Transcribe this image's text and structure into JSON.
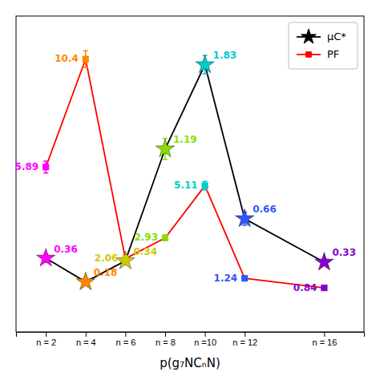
{
  "chart_data": {
    "type": "line",
    "x": [
      2,
      4,
      6,
      8,
      10,
      12,
      16
    ],
    "xlabel": "p(g₇NCₙN)",
    "xlim": [
      0.5,
      18.0
    ],
    "xticks": [
      {
        "value": 2,
        "label": "n = 2"
      },
      {
        "value": 4,
        "label": "n = 4"
      },
      {
        "value": 6,
        "label": "n = 6"
      },
      {
        "value": 8,
        "label": "n = 8"
      },
      {
        "value": 10,
        "label": "n =10"
      },
      {
        "value": 12,
        "label": "n = 12"
      },
      {
        "value": 16,
        "label": "n = 16"
      }
    ],
    "ylim": [
      -0.2,
      2.2
    ],
    "y2lim": [
      -1.0,
      12.2
    ],
    "tick_labels": "x",
    "legend": "upper right",
    "data_labels": true,
    "series": [
      {
        "name": "μC*",
        "color": "black",
        "marker": "star",
        "colors": [
          "#ff00ff",
          "#ff8800",
          "#cccc00",
          "#88dd00",
          "#00cccc",
          "#3355ff",
          "#8800cc"
        ],
        "values": [
          0.36,
          0.18,
          0.34,
          1.19,
          1.83,
          0.66,
          0.33
        ],
        "errors": [
          0.03,
          0.015,
          0.03,
          0.08,
          0.07,
          0.05,
          0.025
        ]
      },
      {
        "name": "PF",
        "color": "red",
        "marker": "square",
        "axis": "y2",
        "colors": [
          "#ff00ff",
          "#ff8800",
          "#cccc00",
          "#88dd00",
          "#00cccc",
          "#3355ff",
          "#8800cc"
        ],
        "values": [
          5.89,
          10.4,
          2.06,
          2.93,
          5.11,
          1.24,
          0.84
        ],
        "errors": [
          0.25,
          0.35,
          0.12,
          0.12,
          0.18,
          0.09,
          0.07
        ]
      }
    ]
  }
}
